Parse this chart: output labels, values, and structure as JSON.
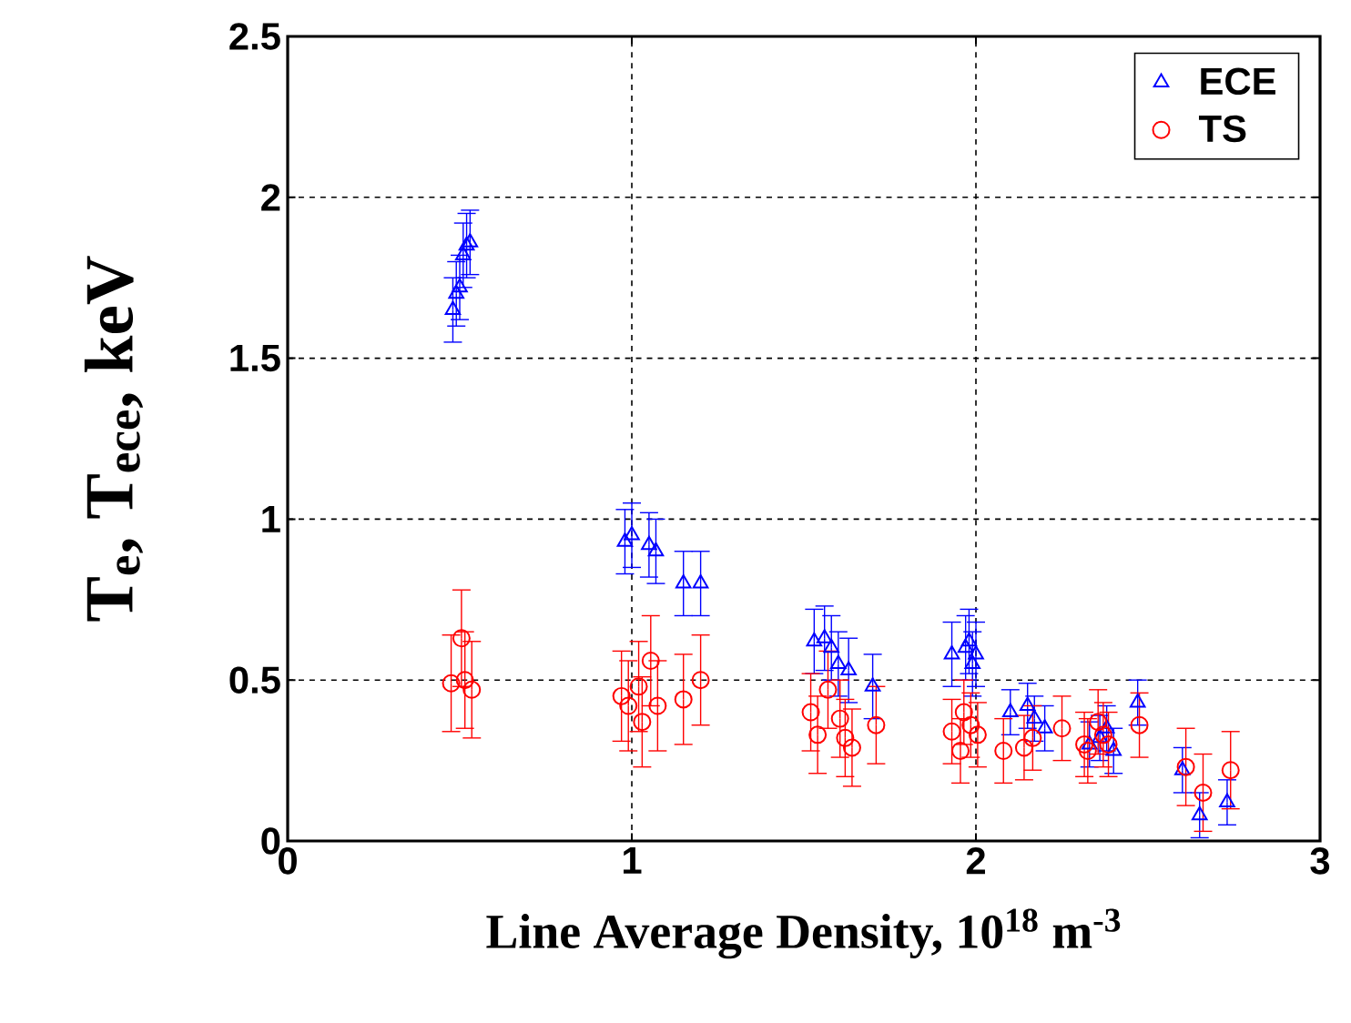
{
  "chart_data": {
    "type": "scatter",
    "xlabel": "Line Average Density, 10$^{18}$ m$^{-3}$",
    "ylabel": "T$_{e}$, T$_{ece}$, keV",
    "xlim": [
      0,
      3
    ],
    "ylim": [
      0,
      2.5
    ],
    "xticks": [
      0,
      1,
      2,
      3
    ],
    "yticks": [
      0,
      0.5,
      1,
      1.5,
      2,
      2.5
    ],
    "grid": true,
    "legend": "top right",
    "series": [
      {
        "name": "ECE",
        "color": "#0000ff",
        "marker": "triangle",
        "x": [
          0.48,
          0.49,
          0.5,
          0.51,
          0.52,
          0.53,
          0.98,
          1.0,
          1.05,
          1.07,
          1.15,
          1.2,
          1.53,
          1.56,
          1.58,
          1.6,
          1.63,
          1.7,
          1.93,
          1.97,
          1.98,
          2.0,
          1.99,
          2.1,
          2.15,
          2.17,
          2.2,
          2.33,
          2.36,
          2.38,
          2.4,
          2.47,
          2.6,
          2.65,
          2.73
        ],
        "values": [
          1.65,
          1.7,
          1.72,
          1.82,
          1.85,
          1.86,
          0.93,
          0.95,
          0.92,
          0.9,
          0.8,
          0.8,
          0.62,
          0.63,
          0.6,
          0.55,
          0.53,
          0.48,
          0.58,
          0.6,
          0.62,
          0.58,
          0.55,
          0.4,
          0.42,
          0.38,
          0.35,
          0.3,
          0.32,
          0.35,
          0.28,
          0.43,
          0.22,
          0.08,
          0.12
        ],
        "errors": [
          0.1,
          0.1,
          0.1,
          0.1,
          0.1,
          0.1,
          0.1,
          0.1,
          0.1,
          0.1,
          0.1,
          0.1,
          0.1,
          0.1,
          0.1,
          0.1,
          0.1,
          0.1,
          0.1,
          0.1,
          0.1,
          0.1,
          0.1,
          0.07,
          0.07,
          0.07,
          0.07,
          0.07,
          0.07,
          0.07,
          0.07,
          0.07,
          0.07,
          0.07,
          0.07
        ]
      },
      {
        "name": "TS",
        "color": "#ff0000",
        "marker": "circle",
        "x": [
          0.505,
          0.475,
          0.515,
          0.535,
          0.97,
          0.99,
          1.02,
          1.03,
          1.055,
          1.075,
          1.15,
          1.2,
          1.52,
          1.54,
          1.57,
          1.605,
          1.62,
          1.64,
          1.71,
          1.93,
          1.965,
          1.985,
          2.005,
          1.955,
          2.08,
          2.14,
          2.165,
          2.25,
          2.315,
          2.325,
          2.355,
          2.37,
          2.385,
          2.475,
          2.61,
          2.66,
          2.74
        ],
        "values": [
          0.63,
          0.49,
          0.5,
          0.47,
          0.45,
          0.42,
          0.48,
          0.37,
          0.56,
          0.42,
          0.44,
          0.5,
          0.4,
          0.33,
          0.47,
          0.38,
          0.32,
          0.29,
          0.36,
          0.34,
          0.4,
          0.36,
          0.33,
          0.28,
          0.28,
          0.29,
          0.32,
          0.35,
          0.3,
          0.28,
          0.37,
          0.33,
          0.3,
          0.36,
          0.23,
          0.15,
          0.22
        ],
        "errors": [
          0.15,
          0.15,
          0.15,
          0.15,
          0.14,
          0.14,
          0.14,
          0.14,
          0.14,
          0.14,
          0.14,
          0.14,
          0.12,
          0.12,
          0.12,
          0.12,
          0.12,
          0.12,
          0.12,
          0.1,
          0.1,
          0.1,
          0.1,
          0.1,
          0.1,
          0.1,
          0.1,
          0.1,
          0.1,
          0.1,
          0.1,
          0.1,
          0.1,
          0.1,
          0.12,
          0.12,
          0.12
        ]
      }
    ]
  }
}
